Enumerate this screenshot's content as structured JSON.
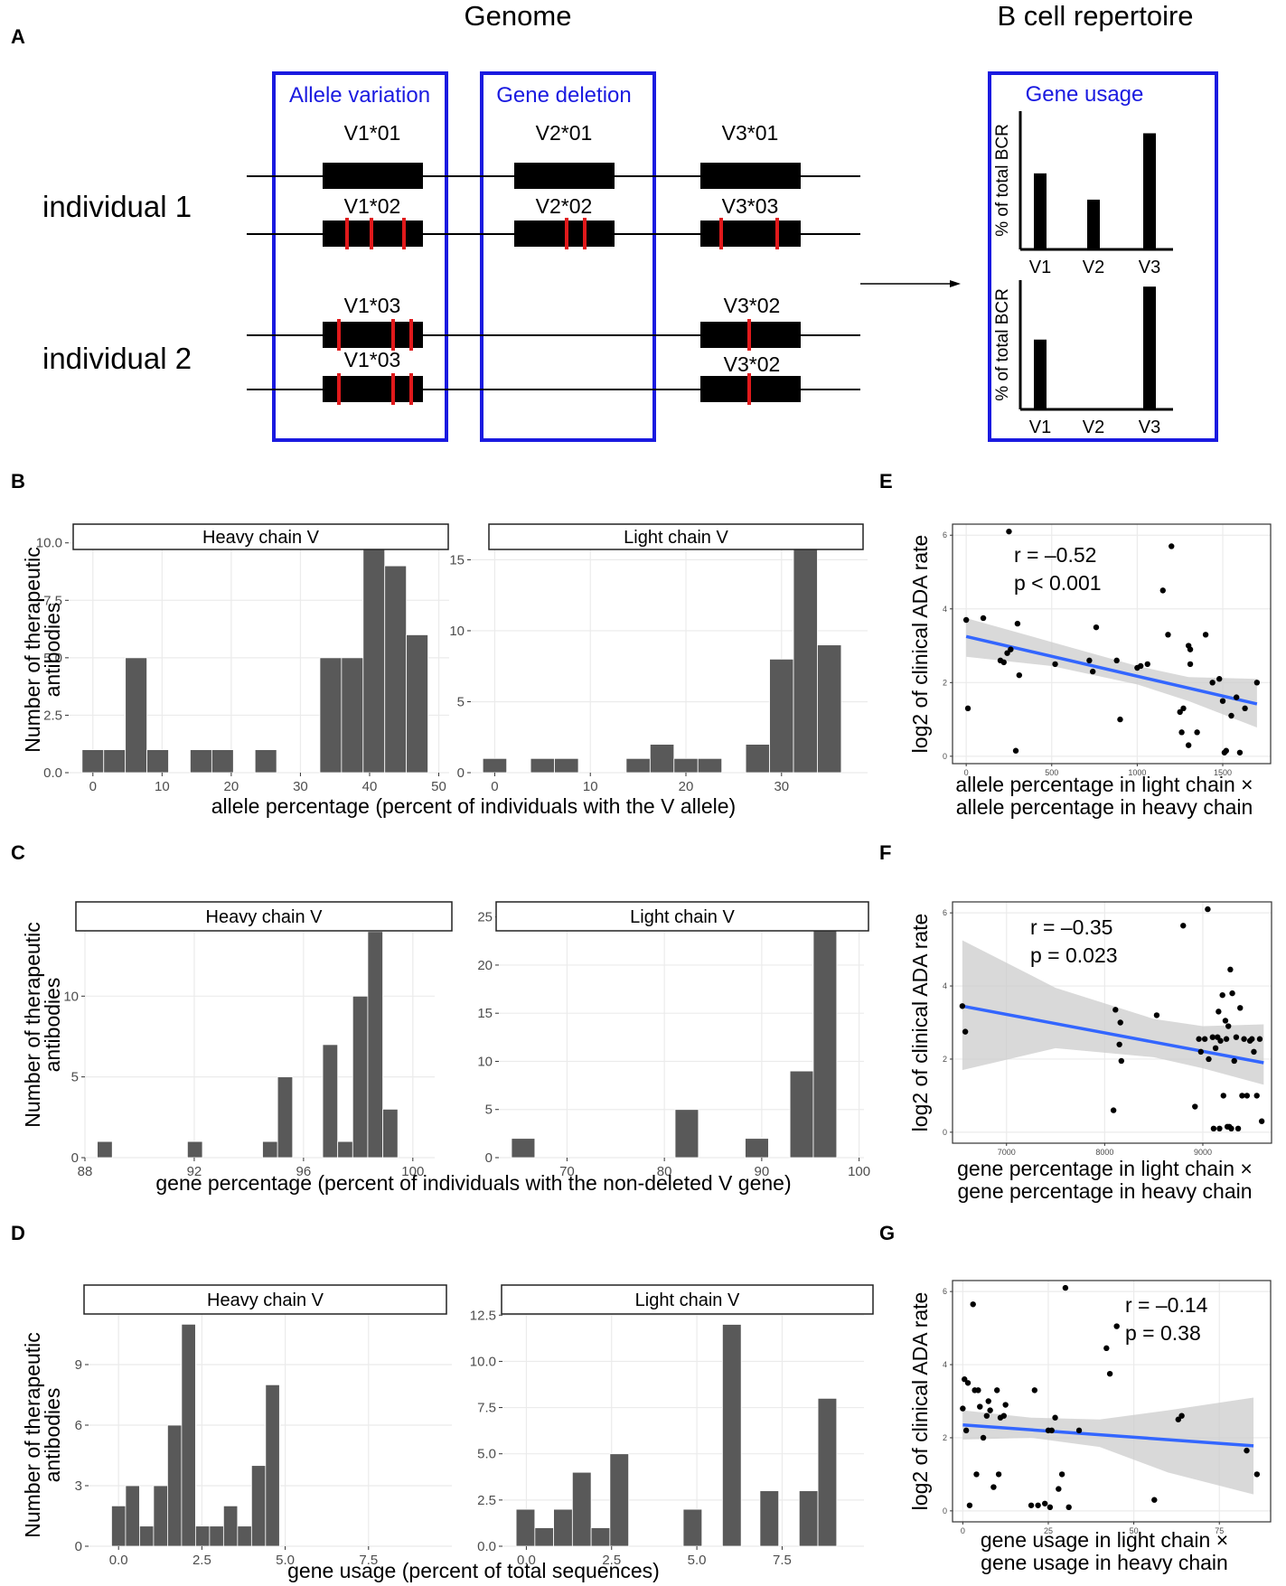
{
  "panel_labels": {
    "A": "A",
    "B": "B",
    "C": "C",
    "D": "D",
    "E": "E",
    "F": "F",
    "G": "G"
  },
  "panel_a": {
    "genome_title": "Genome",
    "repertoire_title": "B cell repertoire",
    "box1_title": "Allele variation",
    "box2_title": "Gene deletion",
    "box3_title": "Gene usage",
    "individual1": "individual 1",
    "individual2": "individual 2",
    "alleles": {
      "v1_01": "V1*01",
      "v2_01": "V2*01",
      "v3_01": "V3*01",
      "v1_02": "V1*02",
      "v2_02": "V2*02",
      "v3_03": "V3*03",
      "v1_03a": "V1*03",
      "v3_02a": "V3*02",
      "v1_03b": "V1*03",
      "v3_02b": "V3*02"
    },
    "usage_ylabel": "% of total BCR",
    "usage_categories": [
      "V1",
      "V2",
      "V3"
    ],
    "usage_individual1": [
      0.55,
      0.36,
      0.84
    ],
    "usage_individual2": [
      0.54,
      0.0,
      0.95
    ],
    "colors": {
      "box": "#1a1ae0",
      "mutation": "#e0191b",
      "gene": "#000000"
    }
  },
  "shared_ylabel_line1": "Number of therapeutic",
  "shared_ylabel_line2": "antibodies",
  "chart_data": [
    {
      "id": "B_heavy",
      "type": "bar",
      "title": "Heavy chain V",
      "xlabel": "allele percentage (percent of individuals with the V allele)",
      "ylabel": "Number of therapeutic antibodies",
      "xlim": [
        -3.5,
        51.5
      ],
      "ylim": [
        0,
        10.5
      ],
      "xticks": [
        0,
        10,
        20,
        30,
        40,
        50
      ],
      "xtick_labels": [
        "0",
        "10",
        "20",
        "30",
        "40",
        "50"
      ],
      "yticks": [
        0,
        2.5,
        5,
        7.5,
        10
      ],
      "ytick_labels": [
        "0.0",
        "2.5",
        "5.0",
        "7.5",
        "10.0"
      ],
      "bin_width": 3.125,
      "bin_starts": [
        -1.5625,
        1.5625,
        4.6875,
        7.8125,
        14.0625,
        17.1875,
        23.4375,
        32.8125,
        35.9375,
        39.0625,
        42.1875,
        45.3125
      ],
      "values": [
        1,
        1,
        5,
        1,
        1,
        1,
        1,
        5,
        5,
        10,
        9,
        6
      ]
    },
    {
      "id": "B_light",
      "type": "bar",
      "title": "Light chain V",
      "xlabel": "allele percentage (percent of individuals with the V allele)",
      "xlim": [
        -2.5,
        39
      ],
      "ylim": [
        0,
        17
      ],
      "xticks": [
        0,
        10,
        20,
        30
      ],
      "xtick_labels": [
        "0",
        "10",
        "20",
        "30"
      ],
      "yticks": [
        0,
        5,
        10,
        15
      ],
      "ytick_labels": [
        "0",
        "5",
        "10",
        "15"
      ],
      "bin_width": 2.5,
      "bin_starts": [
        -1.25,
        3.75,
        6.25,
        13.75,
        16.25,
        18.75,
        21.25,
        26.25,
        28.75,
        31.25,
        33.75
      ],
      "values": [
        1,
        1,
        1,
        1,
        2,
        1,
        1,
        2,
        8,
        16,
        9
      ]
    },
    {
      "id": "C_heavy",
      "type": "bar",
      "title": "Heavy chain V",
      "xlabel": "gene percentage (percent of individuals with the non-deleted V gene)",
      "xlim": [
        88,
        100.8
      ],
      "ylim": [
        0,
        15.5
      ],
      "xticks": [
        88,
        92,
        96,
        100
      ],
      "xtick_labels": [
        "88",
        "92",
        "96",
        "100"
      ],
      "yticks": [
        0,
        5,
        10
      ],
      "ytick_labels": [
        "0",
        "5",
        "10"
      ],
      "bin_width": 0.55,
      "bin_starts": [
        88.45,
        91.75,
        94.5,
        95.05,
        96.7,
        97.25,
        97.8,
        98.35,
        98.9,
        99.45
      ],
      "values": [
        1,
        1,
        1,
        5,
        7,
        1,
        10,
        14,
        3,
        0
      ]
    },
    {
      "id": "C_light",
      "type": "bar",
      "title": "Light chain V",
      "xlabel": "gene percentage (percent of individuals with the non-deleted V gene)",
      "xlim": [
        63,
        100.5
      ],
      "ylim": [
        0,
        26
      ],
      "xticks": [
        70,
        80,
        90,
        100
      ],
      "xtick_labels": [
        "70",
        "80",
        "90",
        "100"
      ],
      "yticks": [
        0,
        5,
        10,
        15,
        20,
        25
      ],
      "ytick_labels": [
        "0",
        "5",
        "10",
        "15",
        "20",
        "25"
      ],
      "bin_width": 2.4,
      "bin_starts": [
        64.3,
        81.1,
        88.3,
        92.9,
        95.3
      ],
      "values": [
        2,
        5,
        2,
        9,
        24
      ]
    },
    {
      "id": "D_heavy",
      "type": "bar",
      "title": "Heavy chain V",
      "xlabel": "gene usage (percent of total sequences)",
      "xlim": [
        -0.9,
        10.0
      ],
      "ylim": [
        0,
        12
      ],
      "xticks": [
        0,
        2.5,
        5,
        7.5
      ],
      "xtick_labels": [
        "0.0",
        "2.5",
        "5.0",
        "7.5"
      ],
      "yticks": [
        0,
        3,
        6,
        9
      ],
      "ytick_labels": [
        "0",
        "3",
        "6",
        "9"
      ],
      "bin_width": 0.42,
      "bin_starts": [
        -0.21,
        0.21,
        0.63,
        1.05,
        1.47,
        1.89,
        2.31,
        2.73,
        3.15,
        3.57,
        3.99,
        4.41,
        5.67,
        7.35
      ],
      "values": [
        2,
        3,
        1,
        3,
        6,
        11,
        1,
        1,
        2,
        1,
        4,
        8,
        0,
        0
      ]
    },
    {
      "id": "D_light",
      "type": "bar",
      "title": "Light chain V",
      "xlabel": "gene usage (percent of total sequences)",
      "xlim": [
        -0.7,
        9.9
      ],
      "ylim": [
        0,
        13.1
      ],
      "xticks": [
        0,
        2.5,
        5,
        7.5
      ],
      "xtick_labels": [
        "0.0",
        "2.5",
        "5.0",
        "7.5"
      ],
      "yticks": [
        0,
        2.5,
        5,
        7.5,
        10,
        12.5
      ],
      "ytick_labels": [
        "0.0",
        "2.5",
        "5.0",
        "7.5",
        "10.0",
        "12.5"
      ],
      "bin_width": 0.55,
      "bin_starts": [
        -0.3,
        0.25,
        0.8,
        1.35,
        1.9,
        2.45,
        4.6,
        5.75,
        6.85,
        8.0,
        8.55
      ],
      "values": [
        2,
        1,
        2,
        4,
        1,
        5,
        2,
        12,
        3,
        3,
        8
      ]
    },
    {
      "id": "E",
      "type": "scatter",
      "xlabel_line1": "allele percentage in light chain ×",
      "xlabel_line2": "allele percentage in heavy chain",
      "ylabel": "log2 of clinical ADA rate",
      "annotation_line1": "r = –0.52",
      "annotation_line2": "p < 0.001",
      "xlim": [
        -80,
        1780
      ],
      "ylim": [
        -0.2,
        6.3
      ],
      "xticks": [
        0,
        500,
        1000,
        1500
      ],
      "xtick_labels": [
        "0",
        "500",
        "1000",
        "1500"
      ],
      "yticks": [
        0,
        2,
        4,
        6
      ],
      "ytick_labels": [
        "0",
        "2",
        "4",
        "6"
      ],
      "fit": {
        "x": [
          0,
          1700
        ],
        "y": [
          3.25,
          1.42
        ]
      },
      "band_upper": [
        [
          0,
          3.75
        ],
        [
          500,
          3.1
        ],
        [
          1000,
          2.45
        ],
        [
          1300,
          2.15
        ],
        [
          1700,
          2.1
        ]
      ],
      "band_lower": [
        [
          1700,
          0.78
        ],
        [
          1300,
          1.5
        ],
        [
          1000,
          1.95
        ],
        [
          500,
          2.45
        ],
        [
          0,
          2.7
        ]
      ],
      "x": [
        0,
        10,
        100,
        200,
        220,
        240,
        250,
        260,
        290,
        300,
        310,
        520,
        720,
        740,
        760,
        880,
        900,
        1000,
        1020,
        1060,
        1150,
        1180,
        1200,
        1250,
        1260,
        1270,
        1300,
        1300,
        1310,
        1310,
        1350,
        1400,
        1440,
        1480,
        1500,
        1510,
        1520,
        1550,
        1580,
        1600,
        1630,
        1700
      ],
      "y": [
        3.7,
        1.3,
        3.75,
        2.6,
        2.55,
        2.8,
        6.1,
        2.9,
        0.15,
        3.6,
        2.2,
        2.5,
        2.6,
        2.3,
        3.5,
        2.6,
        1.0,
        2.4,
        2.45,
        2.5,
        4.5,
        3.3,
        5.7,
        1.2,
        0.65,
        1.3,
        0.3,
        3.0,
        2.9,
        2.5,
        0.65,
        3.3,
        2.0,
        2.1,
        1.5,
        0.1,
        0.15,
        1.1,
        1.6,
        0.1,
        1.3,
        2.0
      ]
    },
    {
      "id": "F",
      "type": "scatter",
      "xlabel_line1": "gene percentage in light chain ×",
      "xlabel_line2": "gene percentage in heavy chain",
      "ylabel": "log2 of clinical ADA rate",
      "annotation_line1": "r = –0.35",
      "annotation_line2": "p = 0.023",
      "xlim": [
        6450,
        9700
      ],
      "ylim": [
        -0.3,
        6.3
      ],
      "xticks": [
        7000,
        8000,
        9000
      ],
      "xtick_labels": [
        "7000",
        "8000",
        "9000"
      ],
      "yticks": [
        0,
        2,
        4,
        6
      ],
      "ytick_labels": [
        "0",
        "2",
        "4",
        "6"
      ],
      "fit": {
        "x": [
          6550,
          9620
        ],
        "y": [
          3.45,
          1.9
        ]
      },
      "band_upper": [
        [
          6550,
          5.25
        ],
        [
          7500,
          3.95
        ],
        [
          8500,
          3.1
        ],
        [
          9000,
          2.9
        ],
        [
          9620,
          2.95
        ]
      ],
      "band_lower": [
        [
          9620,
          1.3
        ],
        [
          9000,
          1.75
        ],
        [
          8500,
          2.05
        ],
        [
          7500,
          2.3
        ],
        [
          6550,
          1.7
        ]
      ],
      "x": [
        6550,
        6580,
        8090,
        8110,
        8150,
        8160,
        8170,
        8530,
        8800,
        8920,
        8960,
        8980,
        9020,
        9050,
        9060,
        9100,
        9110,
        9130,
        9150,
        9160,
        9170,
        9180,
        9200,
        9210,
        9230,
        9240,
        9250,
        9260,
        9270,
        9280,
        9290,
        9300,
        9320,
        9340,
        9360,
        9380,
        9400,
        9420,
        9450,
        9480,
        9500,
        9520,
        9550,
        9580,
        9600
      ],
      "y": [
        3.45,
        2.75,
        0.6,
        3.35,
        2.4,
        3.0,
        1.95,
        3.2,
        5.65,
        0.7,
        2.55,
        2.2,
        2.55,
        6.1,
        2.0,
        2.6,
        0.1,
        2.3,
        2.6,
        3.3,
        0.1,
        2.5,
        3.75,
        1.0,
        3.05,
        2.55,
        0.15,
        2.9,
        0.15,
        4.45,
        0.1,
        3.8,
        1.95,
        2.6,
        0.1,
        3.4,
        1.0,
        2.55,
        1.0,
        2.5,
        2.55,
        2.2,
        1.0,
        2.55,
        0.3
      ]
    },
    {
      "id": "G",
      "type": "scatter",
      "xlabel_line1": "gene usage in light chain ×",
      "xlabel_line2": "gene usage in heavy chain",
      "ylabel": "log2 of clinical ADA rate",
      "annotation_line1": "r = –0.14",
      "annotation_line2": "p = 0.38",
      "xlim": [
        -3,
        90
      ],
      "ylim": [
        -0.3,
        6.3
      ],
      "xticks": [
        0,
        25,
        50,
        75
      ],
      "xtick_labels": [
        "0",
        "25",
        "50",
        "75"
      ],
      "yticks": [
        0,
        2,
        4,
        6
      ],
      "ytick_labels": [
        "0",
        "2",
        "4",
        "6"
      ],
      "fit": {
        "x": [
          0,
          85
        ],
        "y": [
          2.35,
          1.78
        ]
      },
      "band_upper": [
        [
          0,
          2.75
        ],
        [
          20,
          2.55
        ],
        [
          40,
          2.5
        ],
        [
          60,
          2.75
        ],
        [
          85,
          3.1
        ]
      ],
      "band_lower": [
        [
          85,
          0.45
        ],
        [
          60,
          1.05
        ],
        [
          40,
          1.75
        ],
        [
          20,
          2.0
        ],
        [
          0,
          1.95
        ]
      ],
      "x": [
        0,
        0.5,
        1,
        1.5,
        2,
        3,
        3.5,
        4,
        4.5,
        5,
        6,
        7,
        7.5,
        8,
        9,
        10,
        10.5,
        11,
        12,
        12.5,
        20,
        21,
        22,
        24,
        25,
        25.5,
        26,
        27,
        28,
        29,
        30,
        31,
        34,
        42,
        43,
        45,
        56,
        63,
        64,
        83,
        86
      ],
      "y": [
        2.8,
        3.6,
        2.2,
        3.5,
        0.15,
        5.65,
        3.3,
        1.0,
        3.3,
        2.85,
        2.0,
        2.6,
        3.0,
        2.75,
        0.65,
        3.3,
        1.0,
        2.55,
        2.6,
        2.9,
        0.15,
        3.3,
        0.15,
        0.2,
        2.2,
        0.1,
        2.2,
        2.55,
        0.6,
        1.0,
        6.1,
        0.1,
        2.2,
        4.45,
        3.75,
        5.05,
        0.3,
        2.5,
        2.6,
        1.65,
        1.0
      ]
    }
  ],
  "style": {
    "bar_fill": "#595959",
    "bar_edge": "#ffffff",
    "grid": "#ebebeb",
    "strip_fill": "#ffffff",
    "fit_line": "#3366ff",
    "band": "#cccccc",
    "point": "#000000",
    "axis_text": "#4d4d4d"
  }
}
